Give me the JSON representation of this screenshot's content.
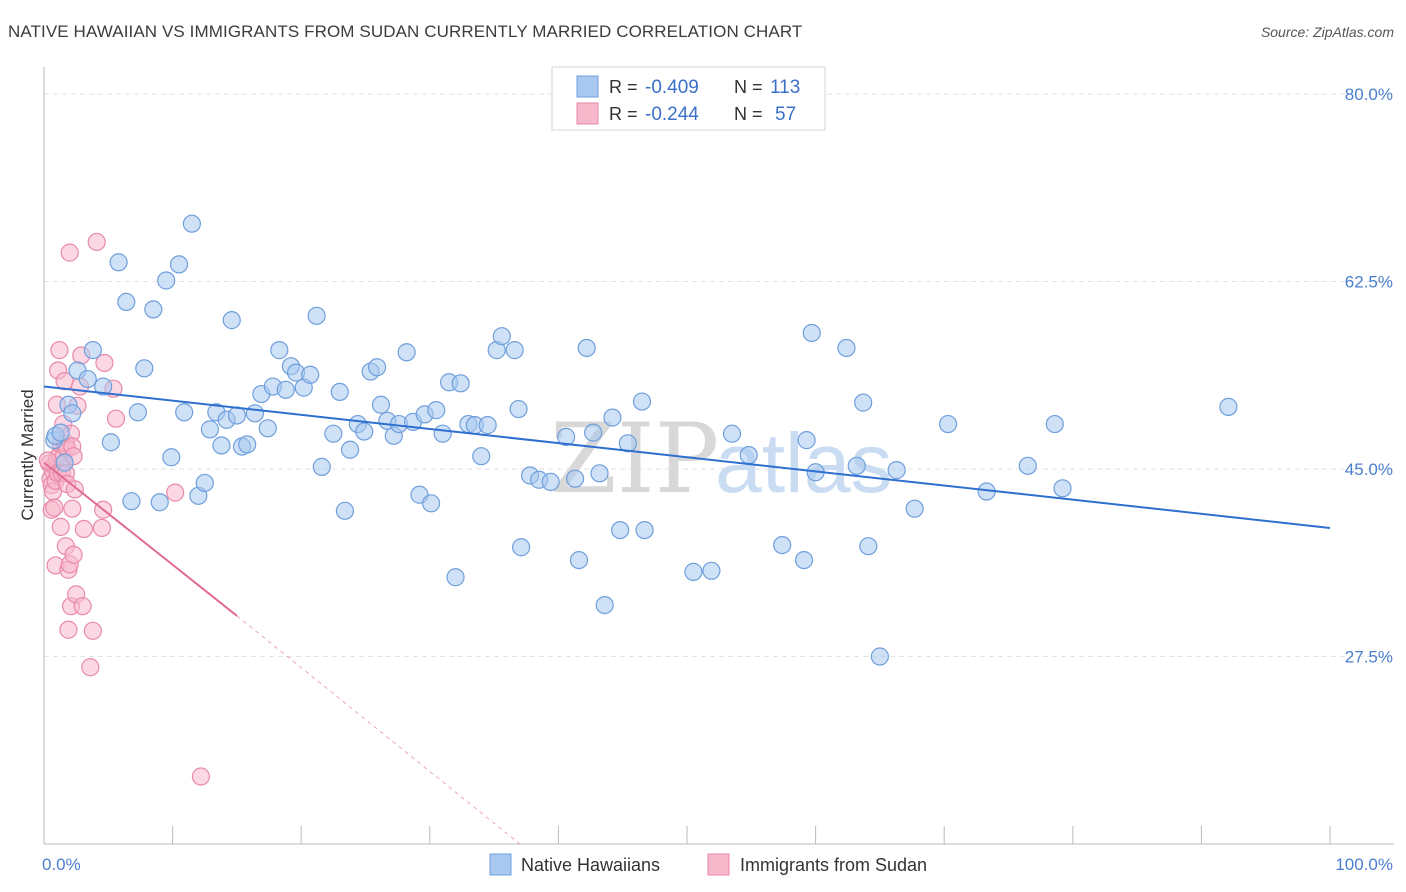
{
  "title": "NATIVE HAWAIIAN VS IMMIGRANTS FROM SUDAN CURRENTLY MARRIED CORRELATION CHART",
  "source": "Source: ZipAtlas.com",
  "watermark": {
    "zip": "ZIP",
    "atlas": "atlas"
  },
  "colors": {
    "blue_fill": "#a8c8f0",
    "blue_stroke": "#6f9fdc",
    "blue_line": "#2e6fd0",
    "pink_fill": "#f7b8cc",
    "pink_stroke": "#e88aa8",
    "pink_line": "#e06a98",
    "tick_text": "#4a7fcf",
    "grid": "#e2e2e2"
  },
  "legend_top": [
    {
      "r_label": "R =",
      "r_value": "-0.409",
      "n_label": "N =",
      "n_value": "113",
      "color": "blue"
    },
    {
      "r_label": "R =",
      "r_value": "-0.244",
      "n_label": "N =",
      "n_value": "57",
      "color": "pink"
    }
  ],
  "legend_bottom": [
    {
      "label": "Native Hawaiians",
      "color": "blue"
    },
    {
      "label": "Immigrants from Sudan",
      "color": "pink"
    }
  ],
  "chart_data": {
    "type": "scatter",
    "title": "NATIVE HAWAIIAN VS IMMIGRANTS FROM SUDAN CURRENTLY MARRIED CORRELATION CHART",
    "xlabel": "",
    "ylabel": "Currently Married",
    "xlim": [
      0,
      100
    ],
    "ylim": [
      10,
      81.5
    ],
    "x_tick_labels": [
      "0.0%",
      "100.0%"
    ],
    "y_ticks": [
      27.5,
      45.0,
      62.5,
      80.0
    ],
    "y_tick_labels": [
      "27.5%",
      "45.0%",
      "62.5%",
      "80.0%"
    ],
    "grid": true,
    "series": [
      {
        "name": "Native Hawaiians",
        "trend": {
          "x": [
            0,
            100
          ],
          "y": [
            52.7,
            39.5
          ]
        },
        "points": [
          [
            0.8,
            47.7
          ],
          [
            0.9,
            48.1
          ],
          [
            1.3,
            48.4
          ],
          [
            1.6,
            45.6
          ],
          [
            1.9,
            51.0
          ],
          [
            2.2,
            50.2
          ],
          [
            2.6,
            54.2
          ],
          [
            3.4,
            53.4
          ],
          [
            3.8,
            56.1
          ],
          [
            4.6,
            52.7
          ],
          [
            5.2,
            47.5
          ],
          [
            5.8,
            64.3
          ],
          [
            6.4,
            60.6
          ],
          [
            6.8,
            42.0
          ],
          [
            7.3,
            50.3
          ],
          [
            7.8,
            54.4
          ],
          [
            8.5,
            59.9
          ],
          [
            9.0,
            41.9
          ],
          [
            9.5,
            62.6
          ],
          [
            9.9,
            46.1
          ],
          [
            10.5,
            64.1
          ],
          [
            10.9,
            50.3
          ],
          [
            11.5,
            67.9
          ],
          [
            12.0,
            42.5
          ],
          [
            12.5,
            43.7
          ],
          [
            12.9,
            48.7
          ],
          [
            13.4,
            50.3
          ],
          [
            13.8,
            47.2
          ],
          [
            14.2,
            49.6
          ],
          [
            14.6,
            58.9
          ],
          [
            15.0,
            50.0
          ],
          [
            15.4,
            47.1
          ],
          [
            15.8,
            47.3
          ],
          [
            16.4,
            50.2
          ],
          [
            16.9,
            52.0
          ],
          [
            17.4,
            48.8
          ],
          [
            17.8,
            52.7
          ],
          [
            18.3,
            56.1
          ],
          [
            18.8,
            52.4
          ],
          [
            19.2,
            54.6
          ],
          [
            19.6,
            54.0
          ],
          [
            20.2,
            52.6
          ],
          [
            20.7,
            53.8
          ],
          [
            21.2,
            59.3
          ],
          [
            21.6,
            45.2
          ],
          [
            22.5,
            48.3
          ],
          [
            23.0,
            52.2
          ],
          [
            23.4,
            41.1
          ],
          [
            23.8,
            46.8
          ],
          [
            24.4,
            49.2
          ],
          [
            24.9,
            48.5
          ],
          [
            25.4,
            54.1
          ],
          [
            25.9,
            54.5
          ],
          [
            26.2,
            51.0
          ],
          [
            26.7,
            49.5
          ],
          [
            27.2,
            48.1
          ],
          [
            27.6,
            49.2
          ],
          [
            28.2,
            55.9
          ],
          [
            28.7,
            49.4
          ],
          [
            29.2,
            42.6
          ],
          [
            29.6,
            50.1
          ],
          [
            30.1,
            41.8
          ],
          [
            30.5,
            50.5
          ],
          [
            31.0,
            48.3
          ],
          [
            31.5,
            53.1
          ],
          [
            32.0,
            34.9
          ],
          [
            32.4,
            53.0
          ],
          [
            33.0,
            49.2
          ],
          [
            33.5,
            49.1
          ],
          [
            34.0,
            46.2
          ],
          [
            34.5,
            49.1
          ],
          [
            35.2,
            56.1
          ],
          [
            35.6,
            57.4
          ],
          [
            36.6,
            56.1
          ],
          [
            36.9,
            50.6
          ],
          [
            37.1,
            37.7
          ],
          [
            37.8,
            44.4
          ],
          [
            38.5,
            44.0
          ],
          [
            39.4,
            43.8
          ],
          [
            40.6,
            48.0
          ],
          [
            41.3,
            44.1
          ],
          [
            41.6,
            36.5
          ],
          [
            42.2,
            56.3
          ],
          [
            42.7,
            48.4
          ],
          [
            43.2,
            44.6
          ],
          [
            43.6,
            32.3
          ],
          [
            44.2,
            49.8
          ],
          [
            44.8,
            39.3
          ],
          [
            45.4,
            47.4
          ],
          [
            46.5,
            51.3
          ],
          [
            46.7,
            39.3
          ],
          [
            50.5,
            35.4
          ],
          [
            51.9,
            35.5
          ],
          [
            53.5,
            48.3
          ],
          [
            54.8,
            46.3
          ],
          [
            57.4,
            37.9
          ],
          [
            59.1,
            36.5
          ],
          [
            59.3,
            47.7
          ],
          [
            59.7,
            57.7
          ],
          [
            60.0,
            44.7
          ],
          [
            62.4,
            56.3
          ],
          [
            63.2,
            45.3
          ],
          [
            63.7,
            51.2
          ],
          [
            64.1,
            37.8
          ],
          [
            65.0,
            27.5
          ],
          [
            66.3,
            44.9
          ],
          [
            67.7,
            41.3
          ],
          [
            70.3,
            49.2
          ],
          [
            73.3,
            42.9
          ],
          [
            76.5,
            45.3
          ],
          [
            78.6,
            49.2
          ],
          [
            79.2,
            43.2
          ],
          [
            92.1,
            50.8
          ]
        ]
      },
      {
        "name": "Immigrants from Sudan",
        "trend": {
          "x": [
            0,
            15
          ],
          "y": [
            45.6,
            31.3
          ]
        },
        "trend_dashed": {
          "x": [
            15,
            37
          ],
          "y": [
            31.3,
            10.0
          ]
        },
        "points": [
          [
            0.4,
            45.5
          ],
          [
            0.5,
            44.1
          ],
          [
            0.6,
            43.5
          ],
          [
            0.6,
            41.2
          ],
          [
            0.7,
            42.9
          ],
          [
            0.7,
            44.8
          ],
          [
            0.8,
            41.4
          ],
          [
            0.8,
            45.3
          ],
          [
            0.9,
            36.0
          ],
          [
            0.9,
            43.9
          ],
          [
            1.0,
            46.0
          ],
          [
            1.0,
            51.0
          ],
          [
            1.1,
            54.2
          ],
          [
            1.1,
            44.6
          ],
          [
            1.2,
            56.1
          ],
          [
            1.2,
            46.3
          ],
          [
            1.3,
            47.3
          ],
          [
            1.3,
            39.6
          ],
          [
            1.4,
            45.4
          ],
          [
            1.4,
            44.6
          ],
          [
            1.5,
            49.2
          ],
          [
            1.5,
            46.1
          ],
          [
            1.6,
            47.2
          ],
          [
            1.6,
            53.2
          ],
          [
            1.7,
            47.4
          ],
          [
            1.7,
            44.6
          ],
          [
            1.7,
            37.8
          ],
          [
            1.8,
            43.6
          ],
          [
            1.8,
            46.9
          ],
          [
            1.9,
            35.6
          ],
          [
            1.9,
            30.0
          ],
          [
            2.0,
            65.2
          ],
          [
            2.0,
            36.1
          ],
          [
            2.1,
            32.2
          ],
          [
            2.1,
            48.3
          ],
          [
            2.2,
            47.1
          ],
          [
            2.2,
            41.3
          ],
          [
            2.3,
            46.2
          ],
          [
            2.3,
            37.0
          ],
          [
            2.4,
            43.1
          ],
          [
            2.5,
            33.3
          ],
          [
            2.6,
            50.9
          ],
          [
            2.8,
            52.7
          ],
          [
            2.9,
            55.6
          ],
          [
            3.0,
            32.2
          ],
          [
            3.1,
            39.4
          ],
          [
            3.6,
            26.5
          ],
          [
            3.8,
            29.9
          ],
          [
            4.1,
            66.2
          ],
          [
            4.5,
            39.5
          ],
          [
            4.6,
            41.2
          ],
          [
            4.7,
            54.9
          ],
          [
            5.4,
            52.5
          ],
          [
            5.6,
            49.7
          ],
          [
            10.2,
            42.8
          ],
          [
            12.2,
            16.3
          ],
          [
            0.3,
            45.8
          ]
        ]
      }
    ]
  }
}
